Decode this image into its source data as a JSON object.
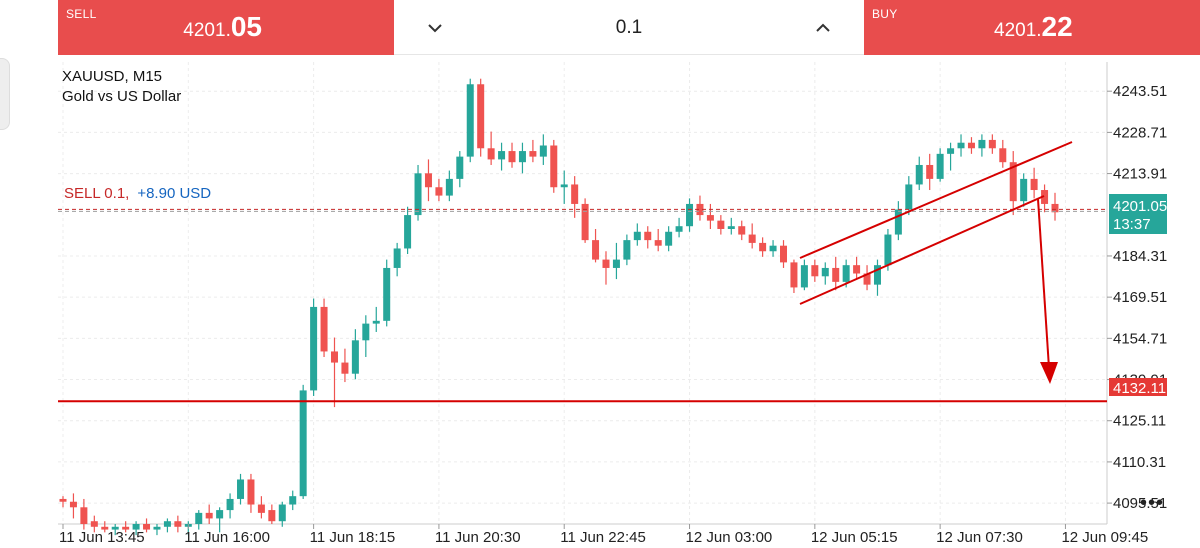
{
  "trade_bar": {
    "sell_label": "SELL",
    "sell_price_main": "4201.",
    "sell_price_big": "05",
    "lot_value": "0.1",
    "buy_label": "BUY",
    "buy_price_main": "4201.",
    "buy_price_big": "22"
  },
  "chart": {
    "symbol": "XAUUSD, M15",
    "description": "Gold vs US Dollar",
    "position_label": "SELL 0.1,",
    "position_pl": "+8.90 USD",
    "current_price_tag": "4201.05",
    "countdown": "13:37",
    "level_tag": "4132.11",
    "price_levels": [
      "4243.51",
      "4228.71",
      "4213.91",
      "4184.31",
      "4169.51",
      "4154.71",
      "4139.91",
      "4125.11",
      "4110.31",
      "4095.51"
    ],
    "time_labels": [
      "11 Jun 13:45",
      "11 Jun 16:00",
      "11 Jun 18:15",
      "11 Jun 20:30",
      "11 Jun 22:45",
      "12 Jun 03:00",
      "12 Jun 05:15",
      "12 Jun 07:30",
      "12 Jun 09:45"
    ],
    "colors": {
      "bull": "#26a69a",
      "bear": "#ef5350",
      "line": "#d50000",
      "bar": "#e84d4d"
    }
  },
  "chart_data": {
    "type": "candlestick",
    "title": "XAUUSD, M15",
    "subtitle": "Gold vs US Dollar",
    "ylim": [
      4088,
      4254
    ],
    "y_ticks": [
      4243.51,
      4228.71,
      4213.91,
      4184.31,
      4169.51,
      4154.71,
      4139.91,
      4125.11,
      4110.31,
      4095.51
    ],
    "x_ticks": [
      "11 Jun 13:45",
      "11 Jun 16:00",
      "11 Jun 18:15",
      "11 Jun 20:30",
      "11 Jun 22:45",
      "12 Jun 03:00",
      "12 Jun 05:15",
      "12 Jun 07:30",
      "12 Jun 09:45"
    ],
    "horizontal_levels": [
      {
        "value": 4201.05,
        "style": "dashed-grey"
      },
      {
        "value": 4132.11,
        "style": "solid-red"
      }
    ],
    "candles": [
      [
        4097,
        4098,
        4094,
        4096
      ],
      [
        4096,
        4099,
        4090,
        4094
      ],
      [
        4094,
        4097,
        4086,
        4088
      ],
      [
        4089,
        4091,
        4085,
        4087
      ],
      [
        4087,
        4089,
        4085,
        4086
      ],
      [
        4086,
        4088,
        4084,
        4087
      ],
      [
        4087,
        4089,
        4085,
        4086
      ],
      [
        4086,
        4089,
        4084,
        4088
      ],
      [
        4088,
        4090,
        4085,
        4086
      ],
      [
        4086,
        4088,
        4084,
        4087
      ],
      [
        4087,
        4090,
        4085,
        4089
      ],
      [
        4089,
        4091,
        4085,
        4087
      ],
      [
        4087,
        4089,
        4084,
        4088
      ],
      [
        4088,
        4093,
        4086,
        4092
      ],
      [
        4092,
        4095,
        4088,
        4090
      ],
      [
        4090,
        4094,
        4085,
        4093
      ],
      [
        4093,
        4099,
        4090,
        4097
      ],
      [
        4097,
        4106,
        4095,
        4104
      ],
      [
        4104,
        4106,
        4092,
        4095
      ],
      [
        4095,
        4098,
        4090,
        4092
      ],
      [
        4093,
        4095,
        4088,
        4089
      ],
      [
        4089,
        4096,
        4087,
        4095
      ],
      [
        4095,
        4100,
        4093,
        4098
      ],
      [
        4098,
        4138,
        4097,
        4136
      ],
      [
        4136,
        4169,
        4134,
        4166
      ],
      [
        4166,
        4169,
        4148,
        4150
      ],
      [
        4150,
        4155,
        4130,
        4146
      ],
      [
        4146,
        4151,
        4139,
        4142
      ],
      [
        4142,
        4158,
        4140,
        4154
      ],
      [
        4154,
        4163,
        4148,
        4160
      ],
      [
        4160,
        4166,
        4157,
        4161
      ],
      [
        4161,
        4183,
        4159,
        4180
      ],
      [
        4180,
        4189,
        4177,
        4187
      ],
      [
        4187,
        4202,
        4185,
        4199
      ],
      [
        4199,
        4217,
        4197,
        4214
      ],
      [
        4214,
        4219,
        4204,
        4209
      ],
      [
        4209,
        4212,
        4204,
        4206
      ],
      [
        4206,
        4215,
        4204,
        4212
      ],
      [
        4212,
        4222,
        4209,
        4220
      ],
      [
        4220,
        4248,
        4218,
        4246
      ],
      [
        4246,
        4248,
        4220,
        4223
      ],
      [
        4223,
        4229,
        4217,
        4219
      ],
      [
        4219,
        4225,
        4215,
        4222
      ],
      [
        4222,
        4225,
        4216,
        4218
      ],
      [
        4218,
        4225,
        4214,
        4222
      ],
      [
        4222,
        4226,
        4218,
        4220
      ],
      [
        4220,
        4228,
        4217,
        4224
      ],
      [
        4224,
        4226,
        4207,
        4209
      ],
      [
        4209,
        4215,
        4203,
        4210
      ],
      [
        4210,
        4213,
        4198,
        4203
      ],
      [
        4203,
        4205,
        4189,
        4190
      ],
      [
        4190,
        4194,
        4182,
        4183
      ],
      [
        4183,
        4186,
        4174,
        4180
      ],
      [
        4180,
        4189,
        4176,
        4183
      ],
      [
        4183,
        4192,
        4181,
        4190
      ],
      [
        4190,
        4196,
        4188,
        4193
      ],
      [
        4193,
        4195,
        4187,
        4190
      ],
      [
        4190,
        4194,
        4186,
        4188
      ],
      [
        4188,
        4195,
        4186,
        4193
      ],
      [
        4193,
        4198,
        4191,
        4195
      ],
      [
        4195,
        4205,
        4193,
        4203
      ],
      [
        4203,
        4206,
        4197,
        4199
      ],
      [
        4199,
        4203,
        4194,
        4197
      ],
      [
        4197,
        4199,
        4192,
        4194
      ],
      [
        4194,
        4198,
        4192,
        4195
      ],
      [
        4195,
        4197,
        4190,
        4192
      ],
      [
        4192,
        4196,
        4187,
        4189
      ],
      [
        4189,
        4191,
        4184,
        4186
      ],
      [
        4186,
        4190,
        4184,
        4188
      ],
      [
        4188,
        4190,
        4180,
        4182
      ],
      [
        4182,
        4183,
        4171,
        4173
      ],
      [
        4173,
        4183,
        4172,
        4181
      ],
      [
        4181,
        4183,
        4175,
        4177
      ],
      [
        4177,
        4182,
        4174,
        4180
      ],
      [
        4180,
        4184,
        4172,
        4175
      ],
      [
        4175,
        4183,
        4173,
        4181
      ],
      [
        4181,
        4184,
        4176,
        4178
      ],
      [
        4178,
        4181,
        4172,
        4174
      ],
      [
        4174,
        4183,
        4170,
        4181
      ],
      [
        4181,
        4194,
        4179,
        4192
      ],
      [
        4192,
        4204,
        4190,
        4201
      ],
      [
        4201,
        4213,
        4199,
        4210
      ],
      [
        4210,
        4220,
        4208,
        4217
      ],
      [
        4217,
        4221,
        4208,
        4212
      ],
      [
        4212,
        4223,
        4211,
        4221
      ],
      [
        4221,
        4225,
        4215,
        4223
      ],
      [
        4223,
        4228,
        4220,
        4225
      ],
      [
        4225,
        4227,
        4221,
        4223
      ],
      [
        4223,
        4228,
        4220,
        4226
      ],
      [
        4226,
        4228,
        4221,
        4223
      ],
      [
        4223,
        4226,
        4216,
        4218
      ],
      [
        4218,
        4222,
        4199,
        4204
      ],
      [
        4204,
        4214,
        4202,
        4212
      ],
      [
        4212,
        4216,
        4205,
        4208
      ],
      [
        4208,
        4210,
        4200,
        4203
      ],
      [
        4203,
        4207,
        4197,
        4200
      ]
    ]
  }
}
